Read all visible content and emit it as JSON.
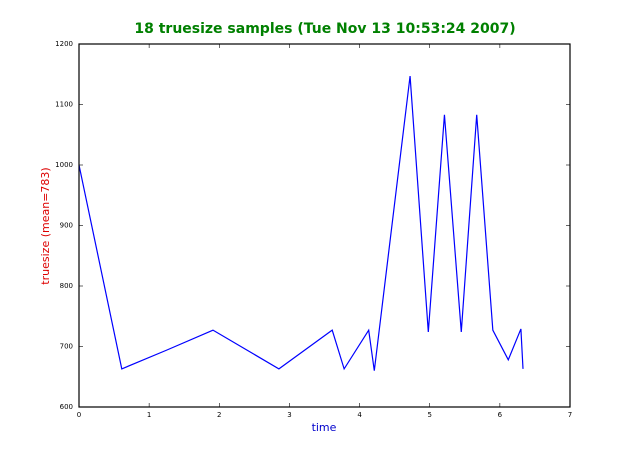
{
  "chart_data": {
    "type": "line",
    "title": "18 truesize samples (Tue Nov 13 10:53:24 2007)",
    "xlabel": "time",
    "ylabel": "truesize (mean=783)",
    "x": [
      0,
      0.61,
      1.25,
      1.91,
      2.85,
      3.61,
      3.78,
      4.13,
      4.21,
      4.72,
      4.98,
      5.21,
      5.45,
      5.67,
      5.9,
      6.12,
      6.3,
      6.33
    ],
    "values": [
      1000,
      663,
      694,
      727,
      663,
      727,
      663,
      727,
      660,
      1147,
      724,
      1083,
      724,
      1083,
      727,
      678,
      729,
      663
    ],
    "color": "#0000ff",
    "xlim": [
      0,
      7
    ],
    "ylim": [
      600,
      1200
    ],
    "xticks": [
      0,
      1,
      2,
      3,
      4,
      5,
      6,
      7
    ],
    "yticks": [
      600,
      700,
      800,
      900,
      1000,
      1100,
      1200
    ]
  }
}
